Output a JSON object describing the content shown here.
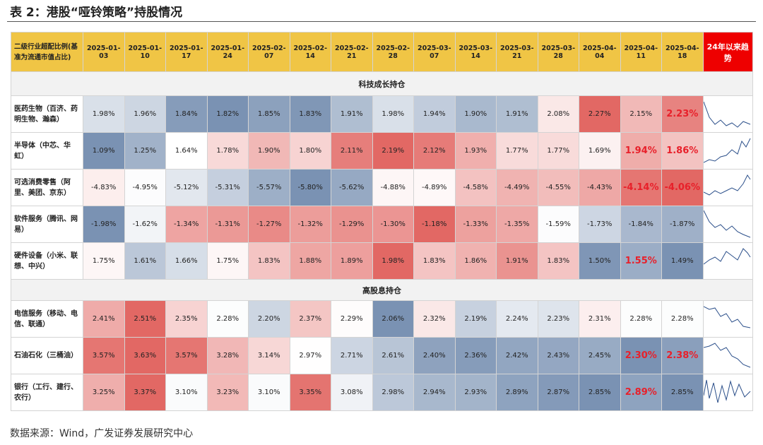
{
  "title": "表 2：港股“哑铃策略”持股情况",
  "table": {
    "header": {
      "first": "二级行业超配比例(基准为流通市值占比)",
      "dates": [
        "2025-01-03",
        "2025-01-10",
        "2025-01-17",
        "2025-01-24",
        "2025-02-07",
        "2025-02-14",
        "2025-02-21",
        "2025-02-28",
        "2025-03-07",
        "2025-03-14",
        "2025-03-21",
        "2025-03-28",
        "2025-04-04",
        "2025-04-11",
        "2025-04-18"
      ],
      "trend": "24年以来趋势"
    },
    "sections": [
      {
        "title": "科技成长持仓",
        "rows": [
          {
            "label": "医药生物（百济、药明生物、瀚森）",
            "cells": [
              "1.98%",
              "1.96%",
              "1.84%",
              "1.82%",
              "1.85%",
              "1.83%",
              "1.91%",
              "1.98%",
              "1.94%",
              "1.90%",
              "1.91%",
              "2.08%",
              "2.27%",
              "2.15%",
              "2.23%"
            ],
            "highlight": [
              14
            ]
          },
          {
            "label": "半导体（中芯、华虹）",
            "cells": [
              "1.09%",
              "1.25%",
              "1.64%",
              "1.78%",
              "1.90%",
              "1.80%",
              "2.11%",
              "2.19%",
              "2.12%",
              "1.93%",
              "1.77%",
              "1.77%",
              "1.69%",
              "1.94%",
              "1.86%"
            ],
            "highlight": [
              13,
              14
            ]
          },
          {
            "label": "可选消费零售（阿里、美团、京东）",
            "cells": [
              "-4.83%",
              "-4.95%",
              "-5.12%",
              "-5.31%",
              "-5.57%",
              "-5.80%",
              "-5.62%",
              "-4.88%",
              "-4.89%",
              "-4.58%",
              "-4.49%",
              "-4.55%",
              "-4.43%",
              "-4.14%",
              "-4.06%"
            ],
            "highlight": [
              13,
              14
            ]
          },
          {
            "label": "软件服务（腾讯、网易）",
            "cells": [
              "-1.98%",
              "-1.62%",
              "-1.34%",
              "-1.31%",
              "-1.27%",
              "-1.32%",
              "-1.29%",
              "-1.30%",
              "-1.18%",
              "-1.33%",
              "-1.35%",
              "-1.59%",
              "-1.73%",
              "-1.84%",
              "-1.87%"
            ],
            "highlight": []
          },
          {
            "label": "硬件设备（小米、联想、中兴）",
            "cells": [
              "1.75%",
              "1.61%",
              "1.66%",
              "1.75%",
              "1.83%",
              "1.88%",
              "1.89%",
              "1.98%",
              "1.83%",
              "1.86%",
              "1.91%",
              "1.83%",
              "1.50%",
              "1.55%",
              "1.49%"
            ],
            "highlight": [
              13
            ]
          }
        ]
      },
      {
        "title": "高股息持仓",
        "rows": [
          {
            "label": "电信服务（移动、电信、联通）",
            "cells": [
              "2.41%",
              "2.51%",
              "2.35%",
              "2.28%",
              "2.20%",
              "2.37%",
              "2.29%",
              "2.06%",
              "2.32%",
              "2.19%",
              "2.24%",
              "2.23%",
              "2.31%",
              "2.28%",
              "2.28%"
            ],
            "highlight": []
          },
          {
            "label": "石油石化（三桶油）",
            "cells": [
              "3.57%",
              "3.63%",
              "3.57%",
              "3.28%",
              "3.14%",
              "2.97%",
              "2.71%",
              "2.61%",
              "2.40%",
              "2.36%",
              "2.42%",
              "2.43%",
              "2.45%",
              "2.30%",
              "2.38%"
            ],
            "highlight": [
              13,
              14
            ]
          },
          {
            "label": "银行（工行、建行、农行）",
            "cells": [
              "3.25%",
              "3.37%",
              "3.10%",
              "3.23%",
              "3.10%",
              "3.35%",
              "3.08%",
              "2.98%",
              "2.94%",
              "2.93%",
              "2.89%",
              "2.87%",
              "2.85%",
              "2.89%",
              "2.85%"
            ],
            "highlight": [
              13
            ]
          }
        ]
      }
    ]
  },
  "source": "数据来源：Wind，广发证券发展研究中心"
}
